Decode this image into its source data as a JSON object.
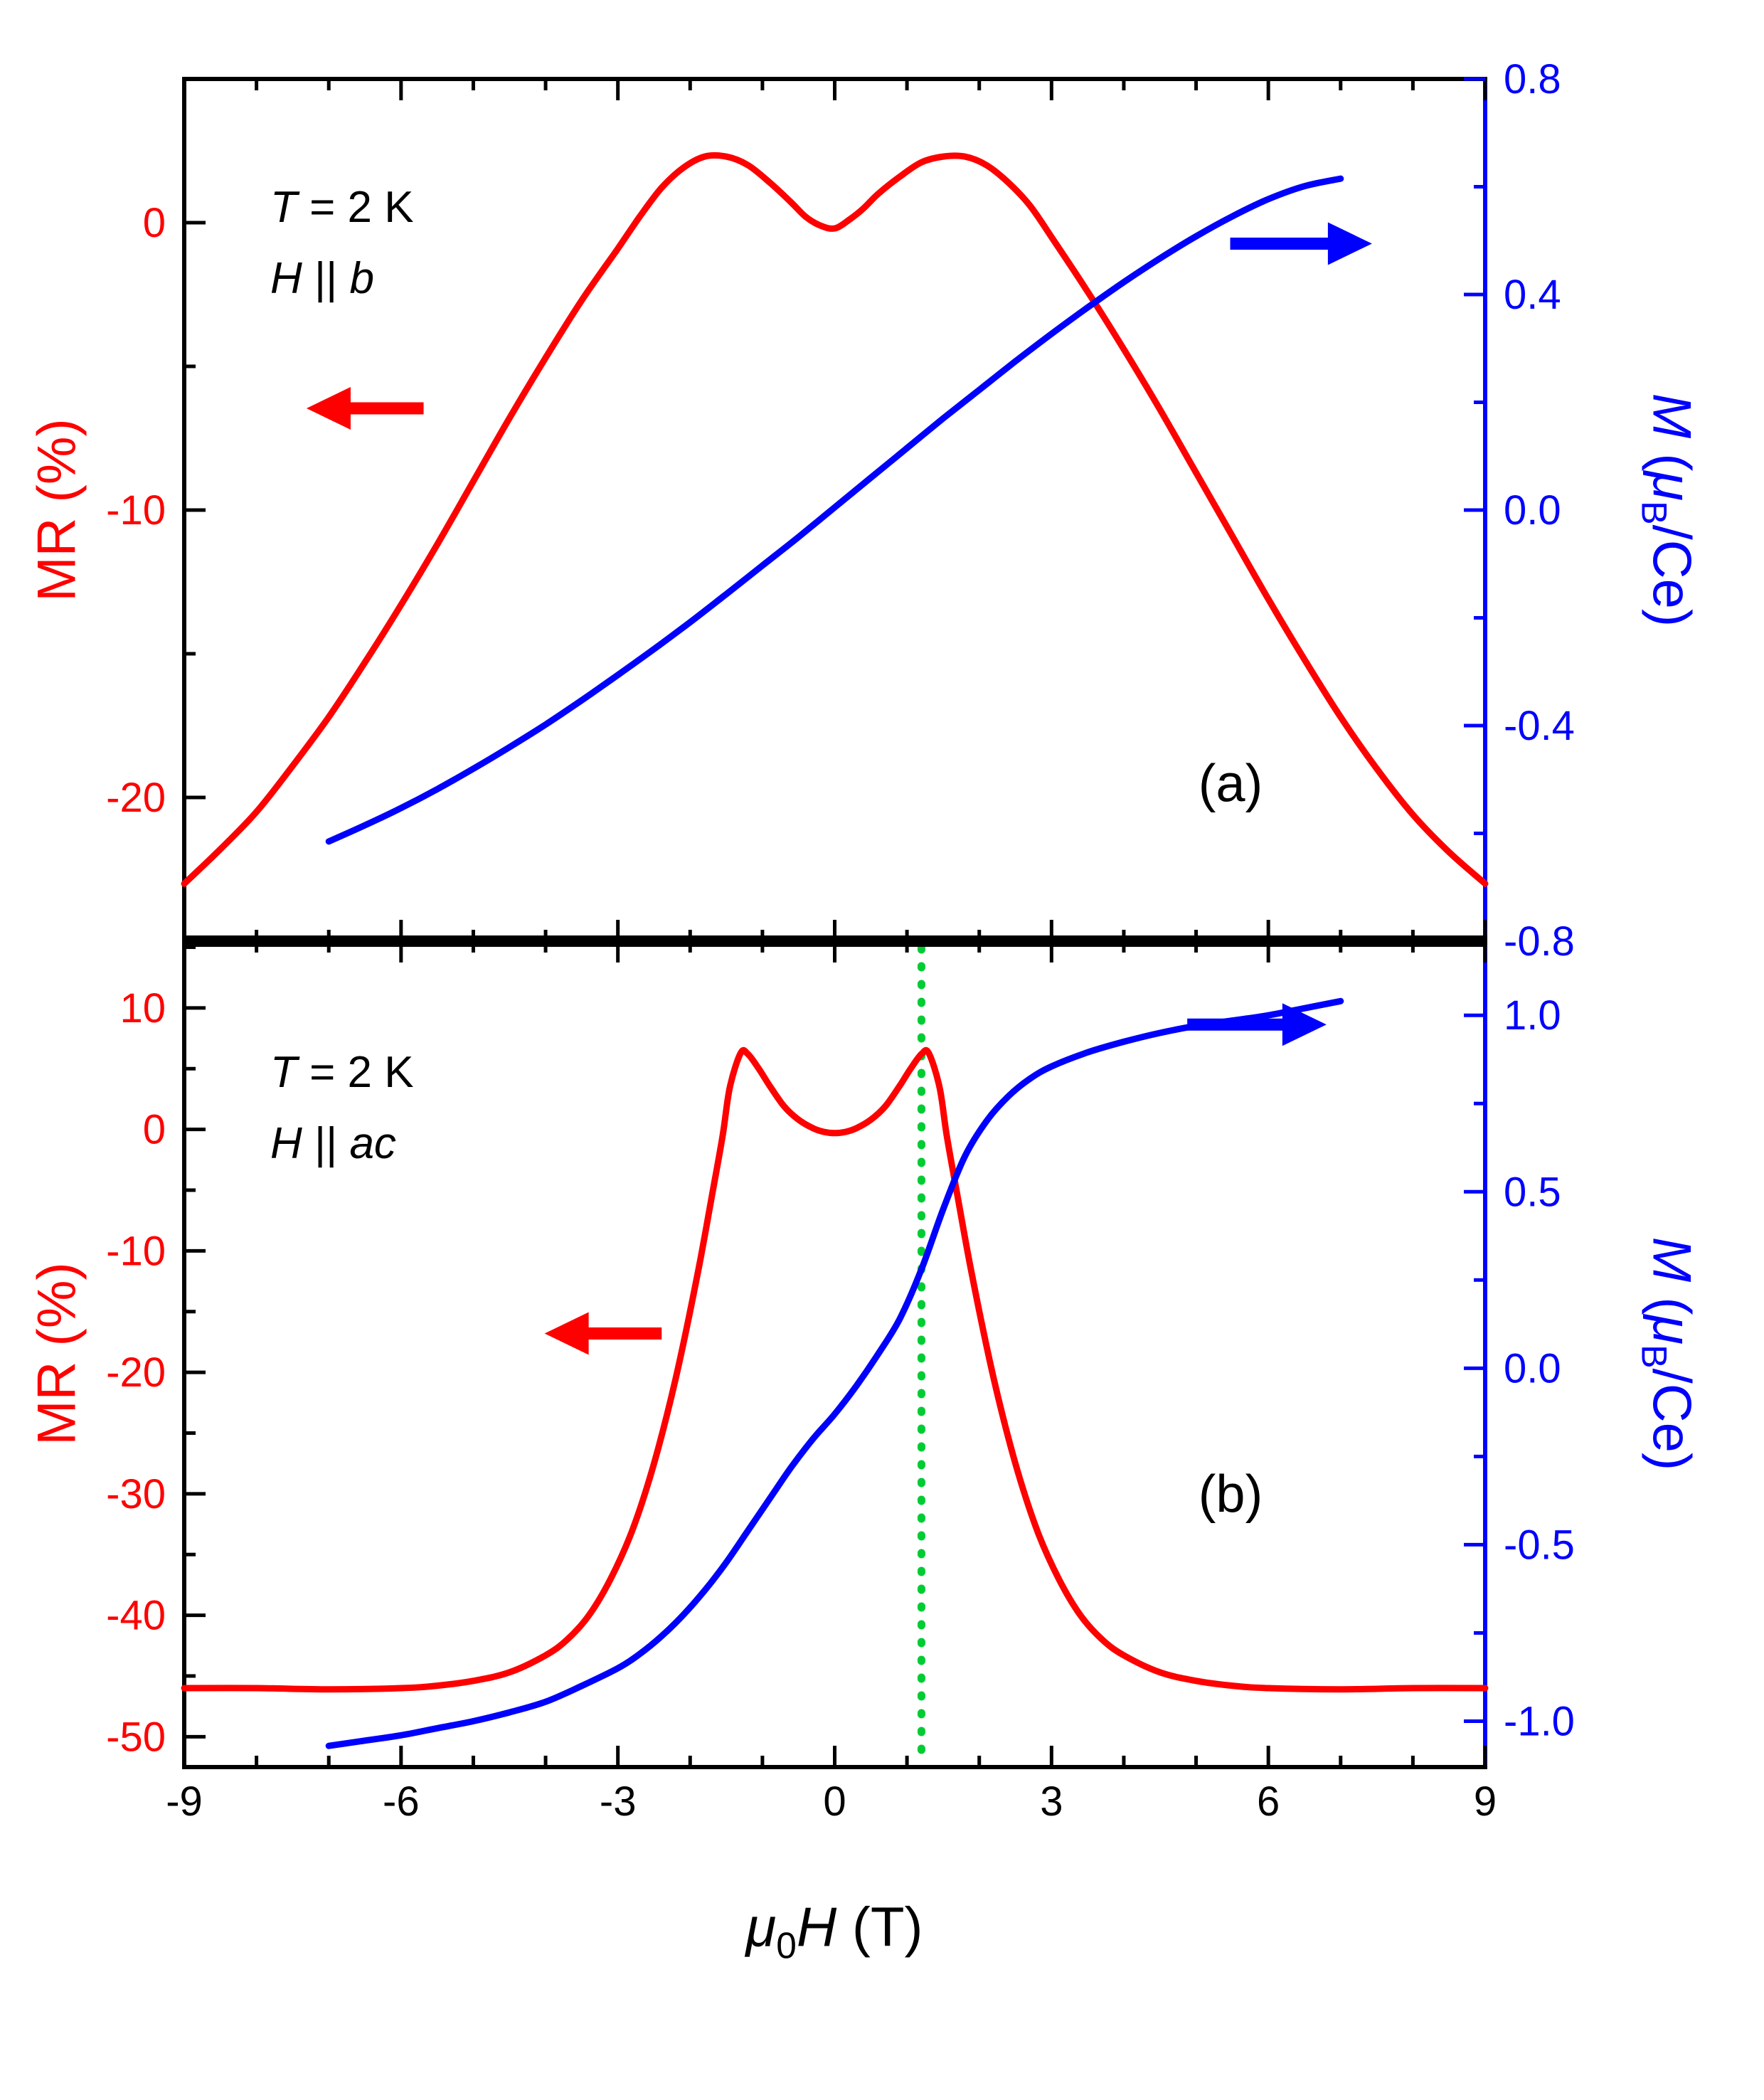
{
  "figure": {
    "background": "#ffffff",
    "panel_a": {
      "label": "(a)",
      "annotation_line1": {
        "italic": "T",
        "rest": " = 2 K"
      },
      "annotation_line2": {
        "italic1": "H",
        "mid": " || ",
        "italic2": "b"
      }
    },
    "panel_b": {
      "label": "(b)",
      "annotation_line1": {
        "italic": "T",
        "rest": " = 2 K"
      },
      "annotation_line2": {
        "italic1": "H",
        "mid": " || ",
        "italic2": "ac"
      }
    },
    "axis_titles": {
      "left": "MR (%)",
      "right": {
        "m": "M",
        "open": " (",
        "mu": "μ",
        "sub": "B",
        "close": "/Ce)"
      },
      "x": {
        "mu": "μ",
        "sub": "0",
        "h": "H",
        "rest": " (T)"
      }
    },
    "colors": {
      "mr": "#ff0000",
      "m": "#0000ff",
      "vline": "#00cc33",
      "axis": "#000000"
    }
  },
  "chart_data": [
    {
      "id": "panel_a",
      "type": "line",
      "title": "",
      "panel_label": "(a)",
      "annotations": [
        "T = 2 K",
        "H || b"
      ],
      "x_axis": {
        "label": "μ0H (T)",
        "range": [
          -9,
          9
        ],
        "tick_values": [
          -9,
          -6,
          -3,
          0,
          3,
          6,
          9
        ],
        "tick_labels": [
          "-9",
          "-6",
          "-3",
          "0",
          "3",
          "6",
          "9"
        ],
        "minor_ticks": [
          -8,
          -7,
          -5,
          -4,
          -2,
          -1,
          1,
          2,
          4,
          5,
          7,
          8
        ],
        "show_tick_labels": false
      },
      "left_axis": {
        "label": "MR (%)",
        "color": "#ff0000",
        "range": [
          -25,
          5
        ],
        "tick_values": [
          0,
          -10,
          -20
        ],
        "tick_labels": [
          "0",
          "-10",
          "-20"
        ],
        "minor_ticks": [
          5,
          -5,
          -15
        ]
      },
      "right_axis": {
        "label": "M (μB/Ce)",
        "color": "#0000ff",
        "range": [
          -0.8,
          0.8
        ],
        "tick_values": [
          0.8,
          0.4,
          0.0,
          -0.4,
          -0.8
        ],
        "tick_labels": [
          "0.8",
          "0.4",
          "0.0",
          "-0.4",
          "-0.8"
        ],
        "minor_ticks": [
          0.6,
          0.2,
          -0.2,
          -0.6
        ]
      },
      "series": [
        {
          "name": "MR",
          "axis": "left",
          "color": "#ff0000",
          "points": [
            [
              -9,
              -23
            ],
            [
              -8.5,
              -21.8
            ],
            [
              -8,
              -20.5
            ],
            [
              -7.5,
              -18.9
            ],
            [
              -7,
              -17.2
            ],
            [
              -6.5,
              -15.3
            ],
            [
              -6,
              -13.3
            ],
            [
              -5.5,
              -11.2
            ],
            [
              -5,
              -9.0
            ],
            [
              -4.5,
              -6.8
            ],
            [
              -4,
              -4.7
            ],
            [
              -3.5,
              -2.7
            ],
            [
              -3,
              -0.9
            ],
            [
              -2.7,
              0.2
            ],
            [
              -2.4,
              1.2
            ],
            [
              -2.1,
              1.9
            ],
            [
              -1.8,
              2.3
            ],
            [
              -1.5,
              2.3
            ],
            [
              -1.2,
              2.0
            ],
            [
              -0.9,
              1.4
            ],
            [
              -0.6,
              0.7
            ],
            [
              -0.4,
              0.2
            ],
            [
              -0.2,
              -0.1
            ],
            [
              0,
              -0.2
            ],
            [
              0.2,
              0.1
            ],
            [
              0.4,
              0.5
            ],
            [
              0.6,
              1.0
            ],
            [
              0.9,
              1.6
            ],
            [
              1.2,
              2.1
            ],
            [
              1.5,
              2.3
            ],
            [
              1.8,
              2.3
            ],
            [
              2.1,
              2.0
            ],
            [
              2.4,
              1.4
            ],
            [
              2.7,
              0.6
            ],
            [
              3,
              -0.5
            ],
            [
              3.5,
              -2.4
            ],
            [
              4,
              -4.4
            ],
            [
              4.5,
              -6.5
            ],
            [
              5,
              -8.7
            ],
            [
              5.5,
              -10.9
            ],
            [
              6,
              -13.1
            ],
            [
              6.5,
              -15.2
            ],
            [
              7,
              -17.2
            ],
            [
              7.5,
              -19.0
            ],
            [
              8,
              -20.6
            ],
            [
              8.5,
              -21.9
            ],
            [
              9,
              -23
            ]
          ]
        },
        {
          "name": "M",
          "axis": "right",
          "color": "#0000ff",
          "points": [
            [
              -7,
              -0.615
            ],
            [
              -6.5,
              -0.585
            ],
            [
              -6,
              -0.553
            ],
            [
              -5.5,
              -0.518
            ],
            [
              -5,
              -0.48
            ],
            [
              -4.5,
              -0.44
            ],
            [
              -4,
              -0.398
            ],
            [
              -3.5,
              -0.353
            ],
            [
              -3,
              -0.306
            ],
            [
              -2.5,
              -0.258
            ],
            [
              -2,
              -0.208
            ],
            [
              -1.5,
              -0.156
            ],
            [
              -1,
              -0.103
            ],
            [
              -0.5,
              -0.05
            ],
            [
              0,
              0.005
            ],
            [
              0.5,
              0.06
            ],
            [
              1,
              0.115
            ],
            [
              1.5,
              0.17
            ],
            [
              2,
              0.223
            ],
            [
              2.5,
              0.276
            ],
            [
              3,
              0.327
            ],
            [
              3.5,
              0.376
            ],
            [
              4,
              0.423
            ],
            [
              4.5,
              0.467
            ],
            [
              5,
              0.508
            ],
            [
              5.5,
              0.545
            ],
            [
              6,
              0.577
            ],
            [
              6.5,
              0.601
            ],
            [
              7,
              0.615
            ]
          ]
        }
      ],
      "arrows": [
        {
          "name": "mr-arrow",
          "direction": "left",
          "color": "#ff0000",
          "fx_tail": 0.184,
          "fx_head": 0.094,
          "fy": 0.382
        },
        {
          "name": "m-arrow",
          "direction": "right",
          "color": "#0000ff",
          "fx_tail": 0.804,
          "fx_head": 0.913,
          "fy": 0.191
        }
      ]
    },
    {
      "id": "panel_b",
      "type": "line",
      "title": "",
      "panel_label": "(b)",
      "annotations": [
        "T = 2 K",
        "H || ac"
      ],
      "x_axis": {
        "label": "μ0H (T)",
        "range": [
          -9,
          9
        ],
        "tick_values": [
          -9,
          -6,
          -3,
          0,
          3,
          6,
          9
        ],
        "tick_labels": [
          "-9",
          "-6",
          "-3",
          "0",
          "3",
          "6",
          "9"
        ],
        "minor_ticks": [
          -8,
          -7,
          -5,
          -4,
          -2,
          -1,
          1,
          2,
          4,
          5,
          7,
          8
        ],
        "show_tick_labels": true
      },
      "left_axis": {
        "label": "MR (%)",
        "color": "#ff0000",
        "range": [
          -52.5,
          15.5
        ],
        "tick_values": [
          10,
          0,
          -10,
          -20,
          -30,
          -40,
          -50
        ],
        "tick_labels": [
          "10",
          "0",
          "-10",
          "-20",
          "-30",
          "-40",
          "-50"
        ],
        "minor_ticks": [
          15,
          5,
          -5,
          -15,
          -25,
          -35,
          -45
        ]
      },
      "right_axis": {
        "label": "M (μB/Ce)",
        "color": "#0000ff",
        "range": [
          -1.13,
          1.21
        ],
        "tick_values": [
          1.0,
          0.5,
          0.0,
          -0.5,
          -1.0
        ],
        "tick_labels": [
          "1.0",
          "0.5",
          "0.0",
          "-0.5",
          "-1.0"
        ],
        "minor_ticks": [
          0.75,
          0.25,
          -0.25,
          -0.75
        ]
      },
      "vline": {
        "x": 1.2,
        "color": "#00cc33",
        "style": "dotted"
      },
      "series": [
        {
          "name": "MR",
          "axis": "left",
          "color": "#ff0000",
          "points": [
            [
              -9,
              -46
            ],
            [
              -8,
              -46
            ],
            [
              -7,
              -46.1
            ],
            [
              -6,
              -46
            ],
            [
              -5.5,
              -45.8
            ],
            [
              -5,
              -45.4
            ],
            [
              -4.5,
              -44.7
            ],
            [
              -4,
              -43.3
            ],
            [
              -3.7,
              -42
            ],
            [
              -3.4,
              -40
            ],
            [
              -3.1,
              -37
            ],
            [
              -2.8,
              -33
            ],
            [
              -2.5,
              -27.5
            ],
            [
              -2.2,
              -20.5
            ],
            [
              -1.9,
              -12
            ],
            [
              -1.7,
              -5.5
            ],
            [
              -1.55,
              -0.5
            ],
            [
              -1.45,
              3.5
            ],
            [
              -1.3,
              6.3
            ],
            [
              -1.2,
              6.2
            ],
            [
              -1.05,
              5.0
            ],
            [
              -0.9,
              3.6
            ],
            [
              -0.7,
              1.9
            ],
            [
              -0.5,
              0.8
            ],
            [
              -0.3,
              0.1
            ],
            [
              -0.15,
              -0.2
            ],
            [
              0,
              -0.3
            ],
            [
              0.15,
              -0.2
            ],
            [
              0.3,
              0.1
            ],
            [
              0.5,
              0.8
            ],
            [
              0.7,
              1.9
            ],
            [
              0.9,
              3.6
            ],
            [
              1.05,
              5.0
            ],
            [
              1.2,
              6.2
            ],
            [
              1.3,
              6.3
            ],
            [
              1.45,
              3.5
            ],
            [
              1.55,
              -0.5
            ],
            [
              1.7,
              -5.5
            ],
            [
              1.9,
              -12
            ],
            [
              2.2,
              -20.5
            ],
            [
              2.5,
              -27.5
            ],
            [
              2.8,
              -33
            ],
            [
              3.1,
              -37
            ],
            [
              3.4,
              -40
            ],
            [
              3.7,
              -42
            ],
            [
              4,
              -43.3
            ],
            [
              4.5,
              -44.7
            ],
            [
              5,
              -45.4
            ],
            [
              5.5,
              -45.8
            ],
            [
              6,
              -46
            ],
            [
              7,
              -46.1
            ],
            [
              8,
              -46
            ],
            [
              9,
              -46
            ]
          ]
        },
        {
          "name": "M",
          "axis": "right",
          "color": "#0000ff",
          "points": [
            [
              -7,
              -1.07
            ],
            [
              -6.5,
              -1.055
            ],
            [
              -6,
              -1.04
            ],
            [
              -5.5,
              -1.02
            ],
            [
              -5,
              -1.0
            ],
            [
              -4.5,
              -0.975
            ],
            [
              -4,
              -0.945
            ],
            [
              -3.5,
              -0.9
            ],
            [
              -3,
              -0.85
            ],
            [
              -2.7,
              -0.81
            ],
            [
              -2.4,
              -0.76
            ],
            [
              -2.1,
              -0.7
            ],
            [
              -1.8,
              -0.63
            ],
            [
              -1.5,
              -0.55
            ],
            [
              -1.2,
              -0.46
            ],
            [
              -0.9,
              -0.37
            ],
            [
              -0.6,
              -0.28
            ],
            [
              -0.3,
              -0.2
            ],
            [
              0,
              -0.13
            ],
            [
              0.3,
              -0.05
            ],
            [
              0.6,
              0.04
            ],
            [
              0.9,
              0.14
            ],
            [
              1.2,
              0.28
            ],
            [
              1.5,
              0.45
            ],
            [
              1.8,
              0.6
            ],
            [
              2.1,
              0.7
            ],
            [
              2.4,
              0.77
            ],
            [
              2.7,
              0.82
            ],
            [
              3,
              0.855
            ],
            [
              3.5,
              0.895
            ],
            [
              4,
              0.925
            ],
            [
              4.5,
              0.95
            ],
            [
              5,
              0.97
            ],
            [
              5.5,
              0.985
            ],
            [
              6,
              1.0
            ],
            [
              6.5,
              1.02
            ],
            [
              7,
              1.04
            ]
          ]
        }
      ],
      "arrows": [
        {
          "name": "mr-arrow",
          "direction": "left",
          "color": "#ff0000",
          "fx_tail": 0.367,
          "fx_head": 0.277,
          "fy": 0.475
        },
        {
          "name": "m-arrow",
          "direction": "right",
          "color": "#0000ff",
          "fx_tail": 0.771,
          "fx_head": 0.878,
          "fy": 0.101
        }
      ]
    }
  ]
}
